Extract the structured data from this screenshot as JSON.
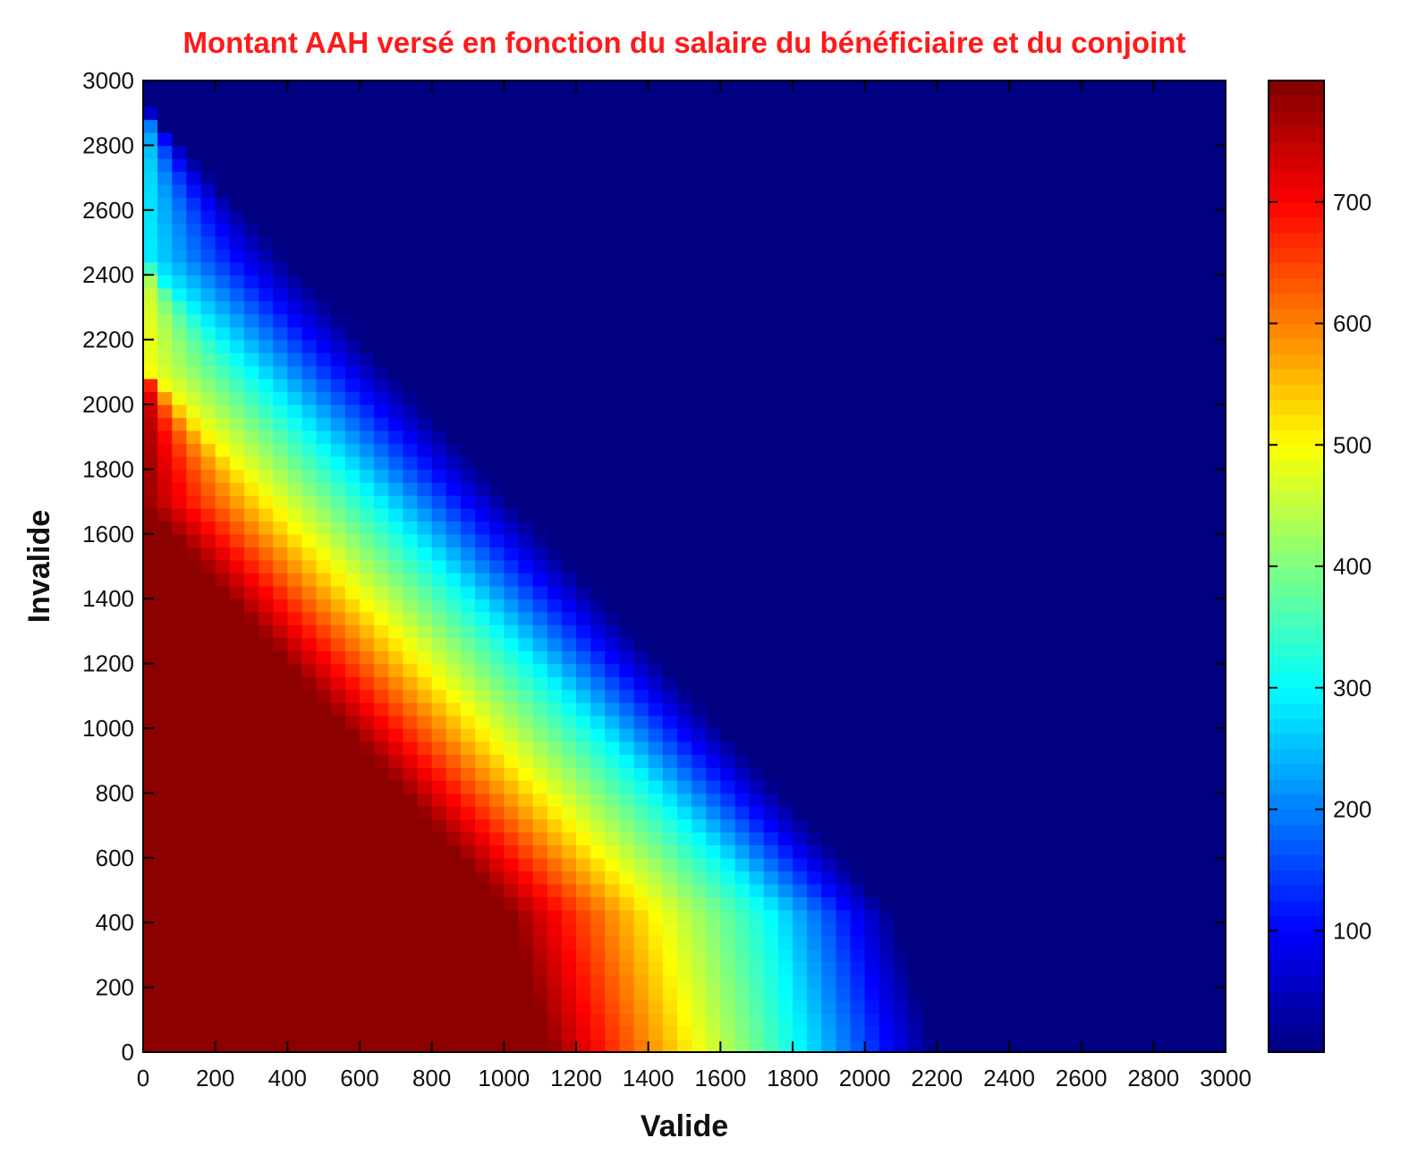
{
  "chart_data": {
    "type": "heatmap",
    "title": "Montant AAH versé en fonction du salaire du bénéficiaire et du conjoint",
    "xlabel": "Valide",
    "ylabel": "Invalide",
    "xlim": [
      0,
      3000
    ],
    "ylim": [
      0,
      3000
    ],
    "x_ticks": [
      0,
      200,
      400,
      600,
      800,
      1000,
      1200,
      1400,
      1600,
      1800,
      2000,
      2200,
      2400,
      2600,
      2800,
      3000
    ],
    "y_ticks": [
      0,
      200,
      400,
      600,
      800,
      1000,
      1200,
      1400,
      1600,
      1800,
      2000,
      2200,
      2400,
      2600,
      2800,
      3000
    ],
    "colorbar": {
      "colormap": "jet",
      "range": [
        0,
        800
      ],
      "ticks": [
        100,
        200,
        300,
        400,
        500,
        600,
        700
      ]
    },
    "grid": false,
    "contours": {
      "description": "Amount (AAH) decreases from max ~790 in the lower-left to 0 in the upper-right; iso-value boundaries per level as (Valide, Invalide) polylines",
      "levels": [
        {
          "value": 790,
          "points": [
            [
              0,
              1700
            ],
            [
              1020,
              430
            ],
            [
              1130,
              0
            ]
          ]
        },
        {
          "value": 500,
          "points": [
            [
              0,
              2120
            ],
            [
              1420,
              430
            ],
            [
              1530,
              0
            ]
          ]
        },
        {
          "value": 300,
          "points": [
            [
              0,
              2450
            ],
            [
              1740,
              430
            ],
            [
              1820,
              0
            ]
          ]
        },
        {
          "value": 0,
          "points": [
            [
              0,
              2930
            ],
            [
              2080,
              430
            ],
            [
              2200,
              0
            ]
          ]
        }
      ]
    },
    "accent_colors": {
      "title": "#ff1a1a"
    }
  }
}
